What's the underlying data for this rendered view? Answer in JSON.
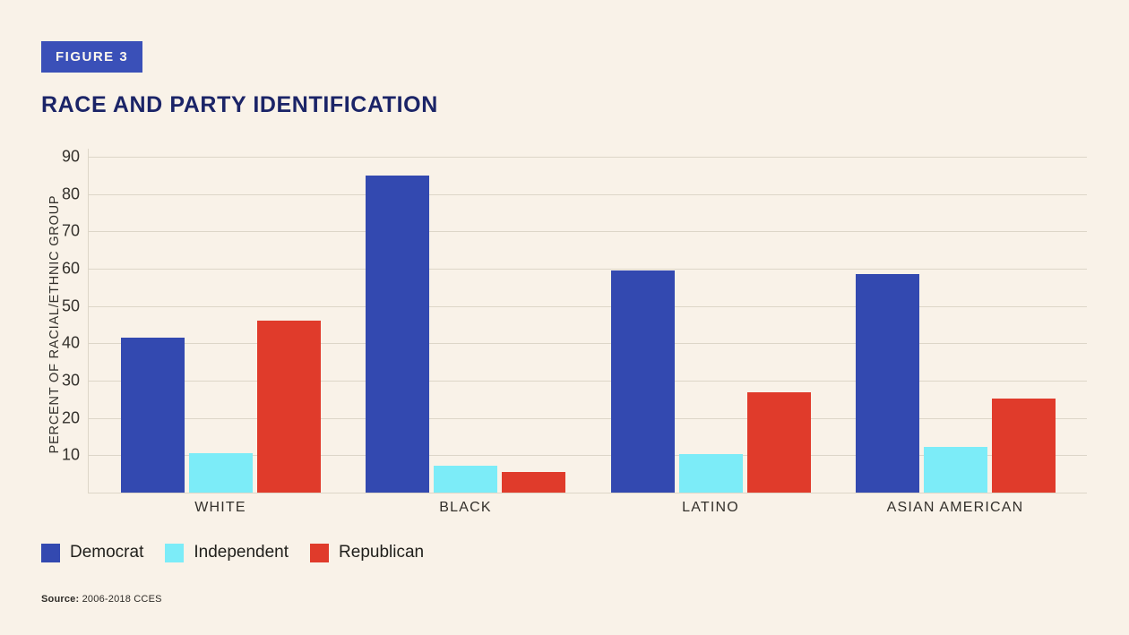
{
  "figure": {
    "badge": "FIGURE 3",
    "title": "RACE AND PARTY IDENTIFICATION"
  },
  "colors": {
    "background": "#f9f2e8",
    "badge_blue": "#3a50b8",
    "title_navy": "#1b2467",
    "democrat_blue": "#3349b0",
    "independent_cyan": "#7cecf8",
    "republican_red": "#e03b2b",
    "gridline": "#ddd6c8",
    "axis_text": "#34312c"
  },
  "chart_data": {
    "type": "bar",
    "title": "RACE AND PARTY IDENTIFICATION",
    "categories": [
      "WHITE",
      "BLACK",
      "LATINO",
      "ASIAN AMERICAN"
    ],
    "series": [
      {
        "name": "Democrat",
        "color": "#3349b0",
        "values": [
          41.5,
          85.0,
          59.5,
          58.5
        ]
      },
      {
        "name": "Independent",
        "color": "#7cecf8",
        "values": [
          10.5,
          7.3,
          10.3,
          12.2
        ]
      },
      {
        "name": "Republican",
        "color": "#e03b2b",
        "values": [
          46.0,
          5.5,
          27.0,
          25.3
        ]
      }
    ],
    "xlabel": "",
    "ylabel": "PERCENT OF RACIAL/ETHNIC GROUP",
    "ylim": [
      0,
      90
    ],
    "yticks": [
      10,
      20,
      30,
      40,
      50,
      60,
      70,
      80,
      90
    ],
    "grid": true,
    "legend_position": "bottom-left"
  },
  "source": {
    "label": "Source:",
    "text": " 2006-2018 CCES"
  }
}
